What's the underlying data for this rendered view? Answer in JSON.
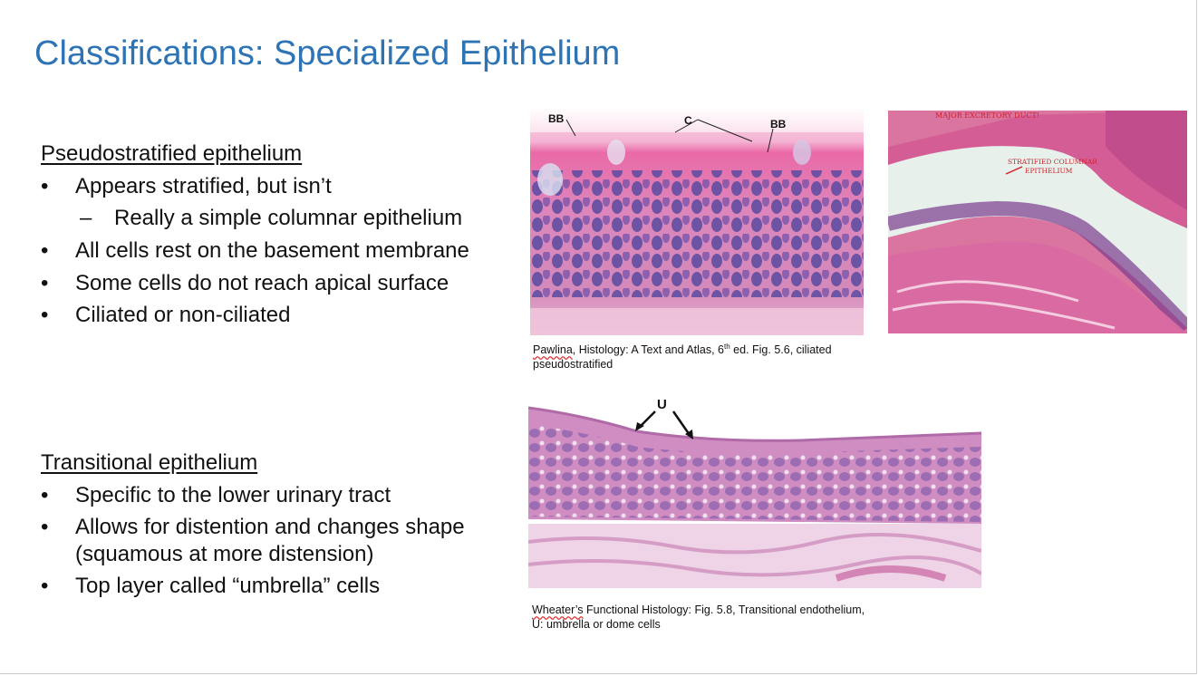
{
  "slide": {
    "title": "Classifications: Specialized Epithelium"
  },
  "pseudostratified": {
    "heading": "Pseudostratified epithelium",
    "bullets": [
      "Appears stratified, but isn’t",
      "All cells rest on the basement membrane",
      "Some cells do not reach apical surface",
      "Ciliated or non-ciliated"
    ],
    "sub_bullet": "Really a simple columnar epithelium"
  },
  "transitional": {
    "heading": "Transitional epithelium",
    "bullets": [
      "Specific to the lower urinary tract",
      "Allows for distention and changes shape",
      "Top layer called “umbrella” cells"
    ],
    "bullet_2_cont": "(squamous at more distension)"
  },
  "bullet_symbol": "•",
  "dash_symbol": "–",
  "figure1": {
    "labels": {
      "bb_left": "BB",
      "c": "C",
      "bb_right": "BB"
    },
    "caption_author": "Pawlina",
    "caption_line1_rest": ", Histology: A Text and Atlas, 6",
    "caption_sup": "th",
    "caption_line1_end": " ed. Fig. 5.6, ciliated",
    "caption_line2": "pseudostratified"
  },
  "figure2": {
    "label_top": "MAJOR EXCRETORY DUCT!",
    "label_epithelium_1": "STRATIFIED COLUMNAR",
    "label_epithelium_2": "EPITHELIUM"
  },
  "figure3": {
    "label_u": "U",
    "caption_author": "Wheater’s",
    "caption_line1_rest": " Functional Histology: Fig. 5.8, Transitional endothelium,",
    "caption_line2": "U: umbrella or dome cells"
  },
  "colors": {
    "title": "#2e74b5",
    "tissue_pink": "#e37fb1",
    "nuclei_purple": "#4a3a8c",
    "background_pale": "#eef3ec",
    "label_red": "#d21f2a"
  }
}
